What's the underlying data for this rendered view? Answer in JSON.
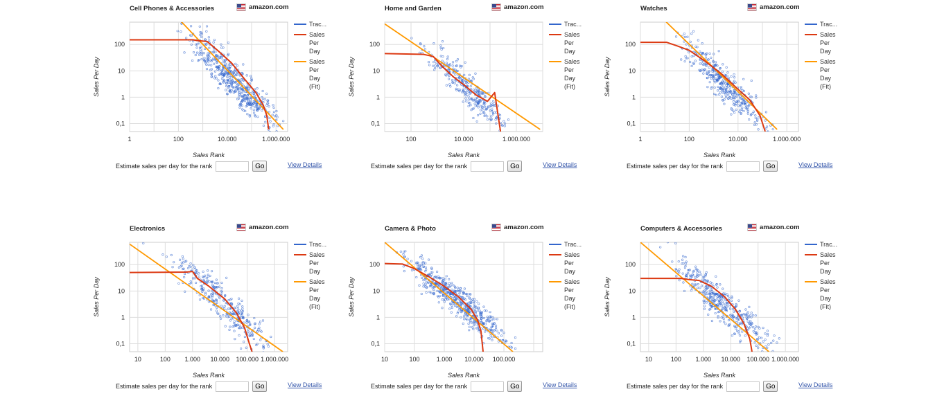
{
  "estimator": {
    "label": "Estimate sales per day for the rank",
    "input_value": "",
    "go_label": "Go",
    "details_label": "View Details"
  },
  "market_label": "amazon.com",
  "legend": [
    "Trac...",
    [
      "Sales",
      "Per",
      "Day"
    ],
    [
      "Sales",
      "Per",
      "Day",
      "(Fit)"
    ]
  ],
  "colors": {
    "tracked": "#3366cc",
    "sales_per_day": "#dc3912",
    "fit": "#ff9900",
    "grid": "#dddddd"
  },
  "panels": [
    {
      "title": "Cell Phones & Accessories",
      "chart_data": {
        "type": "scatter",
        "title": "Cell Phones & Accessories",
        "xlabel": "Sales Rank",
        "ylabel": "Sales Per Day",
        "x_scale": "log",
        "y_scale": "log",
        "xlim": [
          1,
          3000000
        ],
        "ylim": [
          0.05,
          700
        ],
        "x_ticks": [
          1,
          100,
          10000,
          1000000
        ],
        "x_tick_labels": [
          "1",
          "100",
          "10.000",
          "1.000.000"
        ],
        "y_ticks": [
          0.1,
          1,
          10,
          100
        ],
        "y_tick_labels": [
          "0,1",
          "1",
          "10",
          "100"
        ],
        "series": [
          {
            "name": "Sales Per Day",
            "points": [
              [
                1,
                150
              ],
              [
                400,
                150
              ],
              [
                600,
                140
              ],
              [
                1500,
                130
              ],
              [
                4000,
                60
              ],
              [
                15000,
                20
              ],
              [
                50000,
                5
              ],
              [
                150000,
                1.5
              ],
              [
                300000,
                0.5
              ],
              [
                420000,
                0.2
              ],
              [
                500000,
                0.06
              ]
            ]
          },
          {
            "name": "Sales Per Day (Fit)",
            "points": [
              [
                120,
                800
              ],
              [
                2000000,
                0.06
              ]
            ]
          }
        ],
        "scatter_center": [
          [
            20000,
            4
          ]
        ],
        "scatter_spread": [
          1.6,
          1.1
        ],
        "scatter_count": 520
      }
    },
    {
      "title": "Home and Garden",
      "chart_data": {
        "type": "scatter",
        "title": "Home and Garden",
        "xlabel": "Sales Rank",
        "ylabel": "Sales Per Day",
        "x_scale": "log",
        "y_scale": "log",
        "xlim": [
          10,
          10000000
        ],
        "ylim": [
          0.05,
          700
        ],
        "x_ticks": [
          100,
          10000,
          1000000
        ],
        "x_tick_labels": [
          "100",
          "10.000",
          "1.000.000"
        ],
        "y_ticks": [
          0.1,
          1,
          10,
          100
        ],
        "y_tick_labels": [
          "0,1",
          "1",
          "10",
          "100"
        ],
        "series": [
          {
            "name": "Sales Per Day",
            "points": [
              [
                10,
                45
              ],
              [
                300,
                42
              ],
              [
                700,
                35
              ],
              [
                1500,
                15
              ],
              [
                4000,
                6
              ],
              [
                10000,
                3
              ],
              [
                30000,
                1.2
              ],
              [
                80000,
                0.7
              ],
              [
                150000,
                1.5
              ],
              [
                250000,
                0.05
              ]
            ]
          },
          {
            "name": "Sales Per Day (Fit)",
            "points": [
              [
                10,
                600
              ],
              [
                8000000,
                0.06
              ]
            ]
          }
        ],
        "scatter_center": [
          [
            15000,
            2
          ]
        ],
        "scatter_spread": [
          1.3,
          0.9
        ],
        "scatter_count": 300
      }
    },
    {
      "title": "Watches",
      "chart_data": {
        "type": "scatter",
        "title": "Watches",
        "xlabel": "Sales Rank",
        "ylabel": "Sales Per Day",
        "x_scale": "log",
        "y_scale": "log",
        "xlim": [
          1,
          3000000
        ],
        "ylim": [
          0.05,
          700
        ],
        "x_ticks": [
          1,
          100,
          10000,
          1000000
        ],
        "x_tick_labels": [
          "1",
          "100",
          "10.000",
          "1.000.000"
        ],
        "y_ticks": [
          0.1,
          1,
          10,
          100
        ],
        "y_tick_labels": [
          "0,1",
          "1",
          "10",
          "100"
        ],
        "series": [
          {
            "name": "Sales Per Day",
            "points": [
              [
                1,
                120
              ],
              [
                12,
                120
              ],
              [
                30,
                90
              ],
              [
                100,
                60
              ],
              [
                400,
                25
              ],
              [
                2000,
                8
              ],
              [
                10000,
                2
              ],
              [
                30000,
                0.8
              ],
              [
                80000,
                0.2
              ],
              [
                130000,
                0.05
              ]
            ]
          },
          {
            "name": "Sales Per Day (Fit)",
            "points": [
              [
                10,
                800
              ],
              [
                400000,
                0.06
              ]
            ]
          }
        ],
        "scatter_center": [
          [
            3000,
            3
          ]
        ],
        "scatter_spread": [
          1.4,
          0.9
        ],
        "scatter_count": 380
      }
    },
    {
      "title": "Electronics",
      "chart_data": {
        "type": "scatter",
        "title": "Electronics",
        "xlabel": "Sales Rank",
        "ylabel": "Sales Per Day",
        "x_scale": "log",
        "y_scale": "log",
        "xlim": [
          5,
          3000000
        ],
        "ylim": [
          0.05,
          700
        ],
        "x_ticks": [
          10,
          100,
          1000,
          10000,
          100000,
          1000000
        ],
        "x_tick_labels": [
          "10",
          "100",
          "1.000",
          "10.000",
          "100.000",
          "1.000.000"
        ],
        "y_ticks": [
          0.1,
          1,
          10,
          100
        ],
        "y_tick_labels": [
          "0,1",
          "1",
          "10",
          "100"
        ],
        "series": [
          {
            "name": "Sales Per Day",
            "points": [
              [
                5,
                50
              ],
              [
                600,
                52
              ],
              [
                1000,
                55
              ],
              [
                1500,
                30
              ],
              [
                4000,
                15
              ],
              [
                15000,
                5
              ],
              [
                40000,
                1.5
              ],
              [
                80000,
                0.4
              ],
              [
                120000,
                0.1
              ],
              [
                150000,
                0.05
              ]
            ]
          },
          {
            "name": "Sales Per Day (Fit)",
            "points": [
              [
                5,
                600
              ],
              [
                2000000,
                0.05
              ]
            ]
          }
        ],
        "scatter_center": [
          [
            15000,
            3
          ]
        ],
        "scatter_spread": [
          1.4,
          1.0
        ],
        "scatter_count": 330
      }
    },
    {
      "title": "Camera & Photo",
      "chart_data": {
        "type": "scatter",
        "title": "Camera & Photo",
        "xlabel": "Sales Rank",
        "ylabel": "Sales Per Day",
        "x_scale": "log",
        "y_scale": "log",
        "xlim": [
          10,
          2000000
        ],
        "ylim": [
          0.05,
          700
        ],
        "x_ticks": [
          10,
          100,
          1000,
          10000,
          100000
        ],
        "x_tick_labels": [
          "10",
          "100",
          "1.000",
          "10.000",
          "100.000"
        ],
        "y_ticks": [
          0.1,
          1,
          10,
          100
        ],
        "y_tick_labels": [
          "0,1",
          "1",
          "10",
          "100"
        ],
        "series": [
          {
            "name": "Sales Per Day",
            "points": [
              [
                10,
                110
              ],
              [
                40,
                105
              ],
              [
                100,
                70
              ],
              [
                300,
                35
              ],
              [
                1000,
                15
              ],
              [
                3000,
                6
              ],
              [
                8000,
                2
              ],
              [
                13000,
                0.8
              ],
              [
                17000,
                0.3
              ],
              [
                20000,
                0.05
              ]
            ]
          },
          {
            "name": "Sales Per Day (Fit)",
            "points": [
              [
                10,
                700
              ],
              [
                200000,
                0.05
              ]
            ]
          }
        ],
        "scatter_center": [
          [
            3000,
            4
          ]
        ],
        "scatter_spread": [
          1.3,
          0.8
        ],
        "scatter_count": 550
      }
    },
    {
      "title": "Computers & Accessories",
      "chart_data": {
        "type": "scatter",
        "title": "Computers & Accessories",
        "xlabel": "Sales Rank",
        "ylabel": "Sales Per Day",
        "x_scale": "log",
        "y_scale": "log",
        "xlim": [
          5,
          3000000
        ],
        "ylim": [
          0.05,
          700
        ],
        "x_ticks": [
          10,
          100,
          1000,
          10000,
          100000,
          1000000
        ],
        "x_tick_labels": [
          "10",
          "100",
          "1.000",
          "10.000",
          "100.000",
          "1.000.000"
        ],
        "y_ticks": [
          0.1,
          1,
          10,
          100
        ],
        "y_tick_labels": [
          "0,1",
          "1",
          "10",
          "100"
        ],
        "series": [
          {
            "name": "Sales Per Day",
            "points": [
              [
                5,
                30
              ],
              [
                150,
                30
              ],
              [
                300,
                27
              ],
              [
                700,
                25
              ],
              [
                2000,
                15
              ],
              [
                6000,
                6
              ],
              [
                15000,
                2
              ],
              [
                30000,
                0.6
              ],
              [
                50000,
                0.15
              ],
              [
                60000,
                0.05
              ]
            ]
          },
          {
            "name": "Sales Per Day (Fit)",
            "points": [
              [
                5,
                700
              ],
              [
                250000,
                0.05
              ]
            ]
          }
        ],
        "scatter_center": [
          [
            5000,
            3
          ]
        ],
        "scatter_spread": [
          1.5,
          1.0
        ],
        "scatter_count": 420
      }
    }
  ]
}
